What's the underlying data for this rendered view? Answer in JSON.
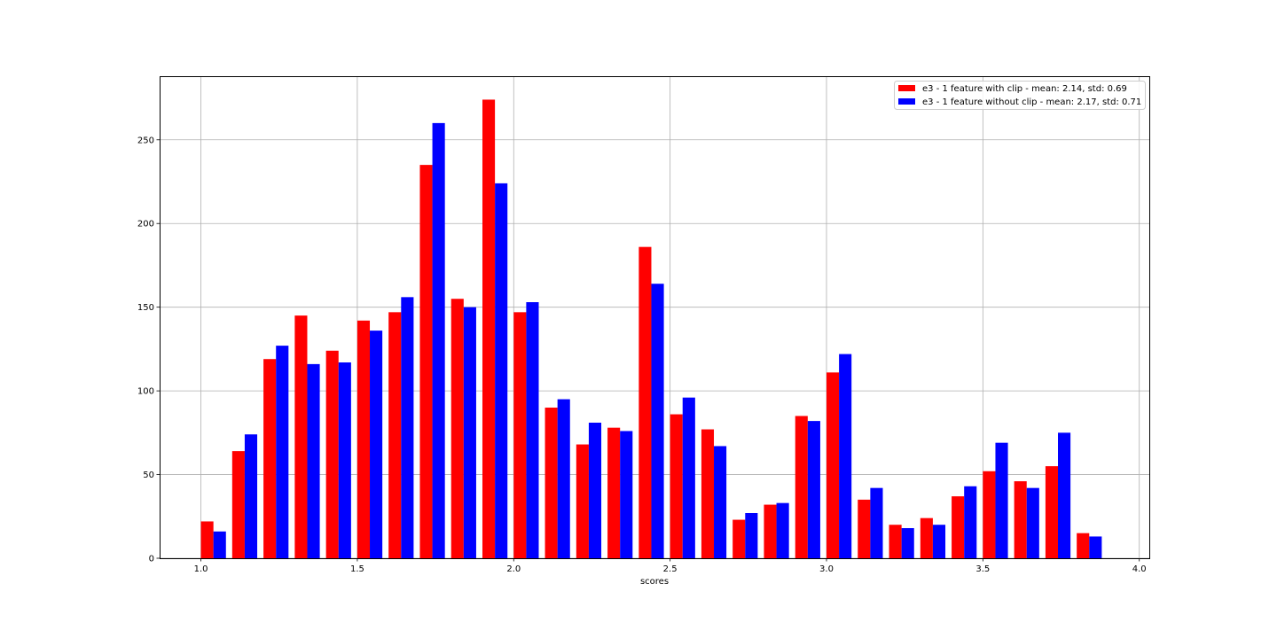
{
  "chart_data": {
    "type": "bar",
    "title": "",
    "xlabel": "scores",
    "ylabel": "",
    "xlim": [
      0.868,
      4.032
    ],
    "ylim": [
      0,
      288
    ],
    "xticks": [
      "1.0",
      "1.5",
      "2.0",
      "2.5",
      "3.0",
      "3.5",
      "4.0"
    ],
    "yticks": [
      "0",
      "50",
      "100",
      "150",
      "200",
      "250"
    ],
    "grid": true,
    "legend_position": "top-right",
    "bin_start": 1.0,
    "bin_width": 0.1,
    "x": [
      1.05,
      1.15,
      1.25,
      1.35,
      1.45,
      1.55,
      1.65,
      1.75,
      1.85,
      1.95,
      2.05,
      2.15,
      2.25,
      2.35,
      2.45,
      2.55,
      2.65,
      2.75,
      2.85,
      2.95,
      3.05,
      3.15,
      3.25,
      3.35,
      3.45,
      3.55,
      3.65,
      3.75,
      3.85
    ],
    "series": [
      {
        "name": "e3 - 1 feature with clip - mean: 2.14, std: 0.69",
        "color": "#ff0000",
        "values": [
          22,
          64,
          119,
          145,
          124,
          142,
          147,
          235,
          155,
          274,
          147,
          90,
          68,
          78,
          186,
          86,
          77,
          23,
          32,
          85,
          111,
          35,
          20,
          24,
          37,
          52,
          46,
          55,
          15
        ]
      },
      {
        "name": "e3 - 1 feature without clip - mean: 2.17, std: 0.71",
        "color": "#0000ff",
        "values": [
          16,
          74,
          127,
          116,
          117,
          136,
          156,
          260,
          150,
          224,
          153,
          95,
          81,
          76,
          164,
          96,
          67,
          27,
          33,
          82,
          122,
          42,
          18,
          20,
          43,
          69,
          42,
          75,
          13
        ]
      }
    ]
  }
}
